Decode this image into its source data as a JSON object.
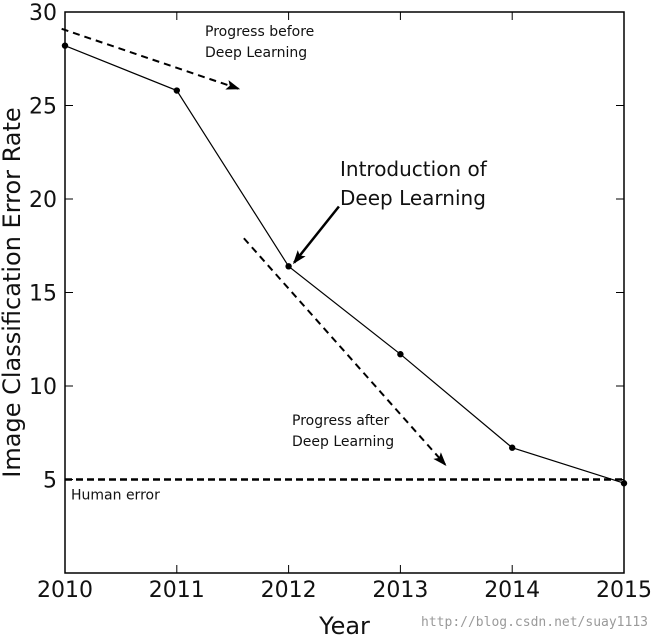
{
  "chart_data": {
    "type": "line",
    "xlabel": "Year",
    "ylabel": "Image Classification Error Rate",
    "xlim": [
      2010,
      2015
    ],
    "ylim": [
      0,
      30
    ],
    "xticks": [
      2010,
      2011,
      2012,
      2013,
      2014,
      2015
    ],
    "yticks": [
      5,
      10,
      15,
      20,
      25,
      30
    ],
    "grid": false,
    "series": [
      {
        "x": [
          2010,
          2011,
          2012,
          2013,
          2014,
          2015
        ],
        "y": [
          28.2,
          25.8,
          16.4,
          11.7,
          6.7,
          4.8
        ]
      }
    ],
    "reference_lines": [
      {
        "label": "Human error",
        "y": 5,
        "style": "dashed"
      }
    ],
    "annotations": [
      {
        "id": "before",
        "lines": [
          "Progress before",
          "Deep Learning"
        ],
        "arrow": {
          "from": [
            2009.97,
            29.1
          ],
          "to": [
            2011.55,
            25.9
          ]
        }
      },
      {
        "id": "intro",
        "lines": [
          "Introduction of",
          "Deep Learning"
        ],
        "arrow": {
          "from": [
            2012.45,
            19.6
          ],
          "to": [
            2012.05,
            16.6
          ]
        }
      },
      {
        "id": "after",
        "lines": [
          "Progress after",
          "Deep Learning"
        ],
        "arrow": {
          "from": [
            2011.6,
            17.9
          ],
          "to": [
            2013.4,
            5.8
          ]
        }
      }
    ]
  },
  "watermark": "http://blog.csdn.net/suay1113"
}
